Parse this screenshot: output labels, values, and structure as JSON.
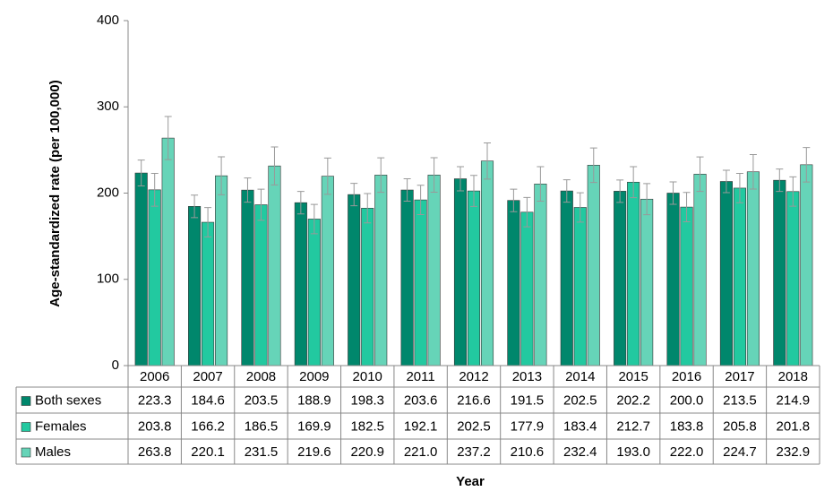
{
  "chart_data": {
    "type": "bar",
    "y_label": "Age-standardized rate (per 100,000)",
    "x_label": "Year",
    "categories": [
      "2006",
      "2007",
      "2008",
      "2009",
      "2010",
      "2011",
      "2012",
      "2013",
      "2014",
      "2015",
      "2016",
      "2017",
      "2018"
    ],
    "ylim": [
      0,
      400
    ],
    "yticks": [
      0,
      100,
      200,
      300,
      400
    ],
    "grid": false,
    "series": [
      {
        "name": "Both sexes",
        "color": "#00876c",
        "values": [
          223.3,
          184.6,
          203.5,
          188.9,
          198.3,
          203.6,
          216.6,
          191.5,
          202.5,
          202.2,
          200.0,
          213.5,
          214.9
        ],
        "value_labels": [
          "223.3",
          "184.6",
          "203.5",
          "188.9",
          "198.3",
          "203.6",
          "216.6",
          "191.5",
          "202.5",
          "202.2",
          "200.0",
          "213.5",
          "214.9"
        ],
        "errors": [
          15,
          13,
          14,
          13,
          13,
          13,
          14,
          13,
          13,
          13,
          13,
          13,
          13
        ]
      },
      {
        "name": "Females",
        "color": "#22c9a0",
        "values": [
          203.8,
          166.2,
          186.5,
          169.9,
          182.5,
          192.1,
          202.5,
          177.9,
          183.4,
          212.7,
          183.8,
          205.8,
          201.8
        ],
        "value_labels": [
          "203.8",
          "166.2",
          "186.5",
          "169.9",
          "182.5",
          "192.1",
          "202.5",
          "177.9",
          "183.4",
          "212.7",
          "183.8",
          "205.8",
          "201.8"
        ],
        "errors": [
          19,
          17,
          18,
          17,
          17,
          17,
          18,
          17,
          17,
          18,
          17,
          17,
          17
        ]
      },
      {
        "name": "Males",
        "color": "#66d4b8",
        "values": [
          263.8,
          220.1,
          231.5,
          219.6,
          220.9,
          221.0,
          237.2,
          210.6,
          232.4,
          193.0,
          222.0,
          224.7,
          232.9
        ],
        "value_labels": [
          "263.8",
          "220.1",
          "231.5",
          "219.6",
          "220.9",
          "221.0",
          "237.2",
          "210.6",
          "232.4",
          "193.0",
          "222.0",
          "224.7",
          "232.9"
        ],
        "errors": [
          25,
          22,
          22,
          21,
          20,
          20,
          21,
          20,
          20,
          18,
          20,
          20,
          20
        ]
      }
    ]
  }
}
